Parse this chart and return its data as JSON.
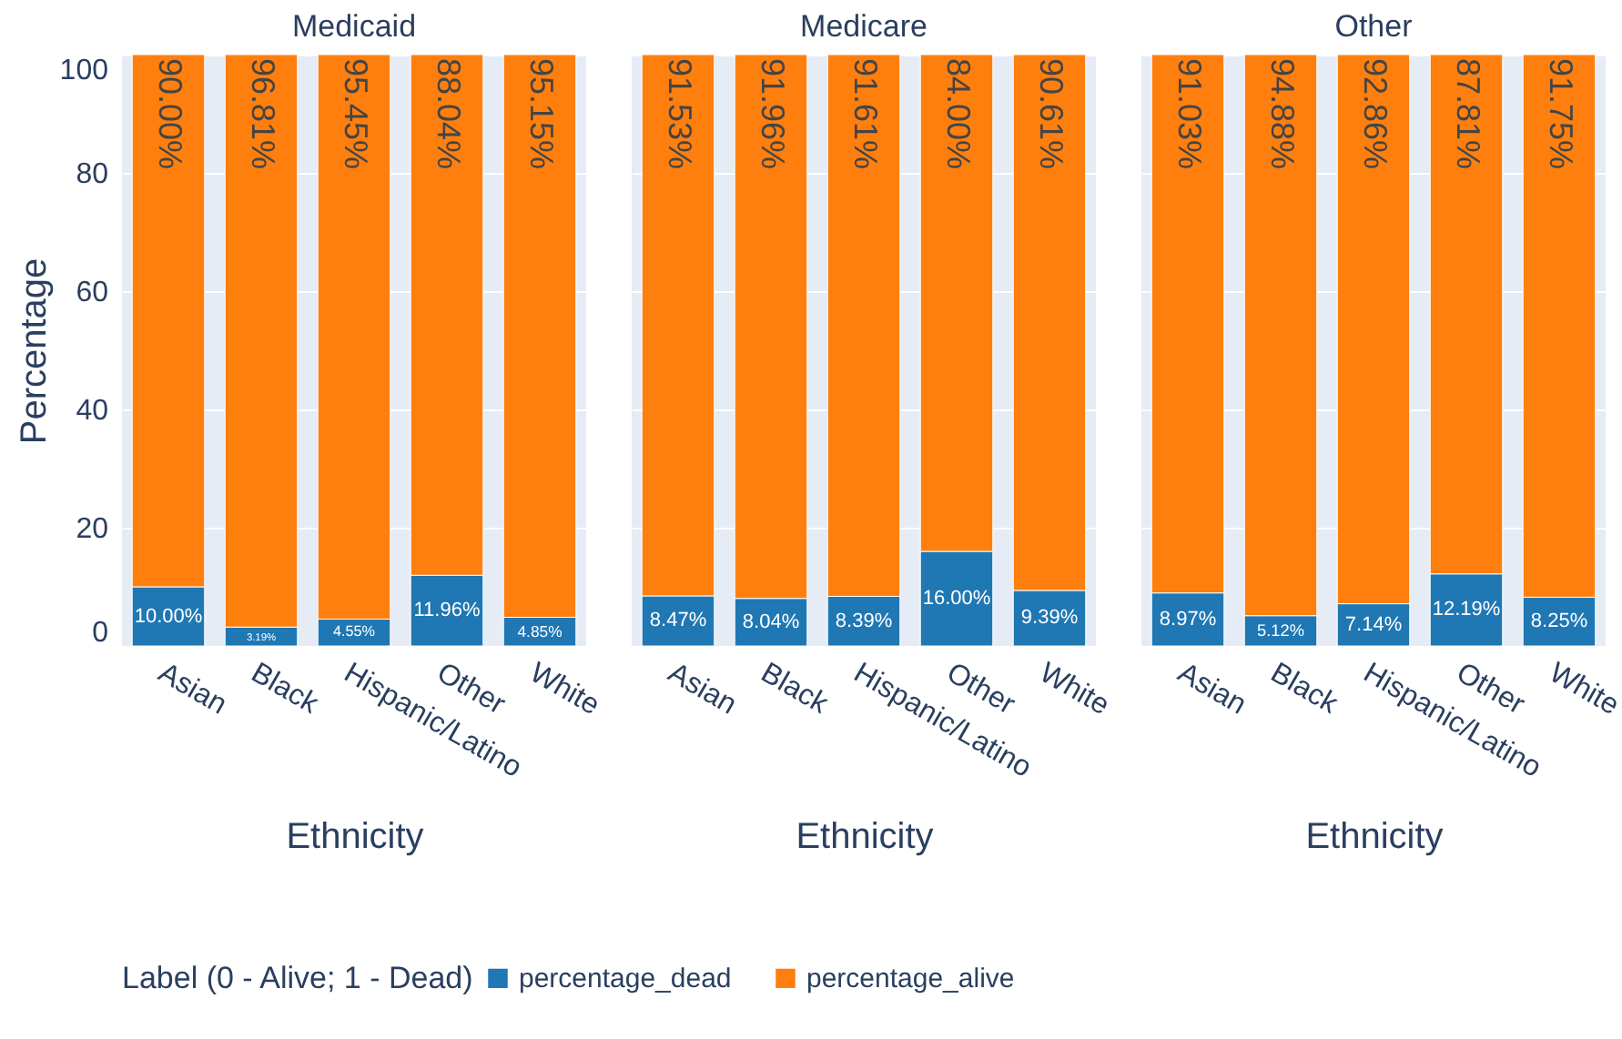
{
  "chart_data": [
    {
      "type": "bar",
      "stacked": true,
      "title": "Medicaid",
      "xlabel": "Ethnicity",
      "ylabel": "Percentage",
      "categories": [
        "Asian",
        "Black",
        "Hispanic/Latino",
        "Other",
        "White"
      ],
      "ylim": [
        0,
        100
      ],
      "yticks": [
        0,
        20,
        40,
        60,
        80,
        100
      ],
      "grid": "y",
      "legend": "bottom",
      "legend_title": "Label (0 - Alive; 1 - Dead)",
      "series": [
        {
          "name": "percentage_dead",
          "color": "#1f77b4",
          "values": [
            10.0,
            3.19,
            4.55,
            11.96,
            4.85
          ],
          "value_labels": [
            "10.00%",
            "3.19%",
            "4.55%",
            "11.96%",
            "4.85%"
          ]
        },
        {
          "name": "percentage_alive",
          "color": "#ff7f0e",
          "values": [
            90.0,
            96.81,
            95.45,
            88.04,
            95.15
          ],
          "value_labels": [
            "90.00%",
            "96.81%",
            "95.45%",
            "88.04%",
            "95.15%"
          ]
        }
      ]
    },
    {
      "type": "bar",
      "stacked": true,
      "title": "Medicare",
      "xlabel": "Ethnicity",
      "categories": [
        "Asian",
        "Black",
        "Hispanic/Latino",
        "Other",
        "White"
      ],
      "ylim": [
        0,
        100
      ],
      "yticks": [
        0,
        20,
        40,
        60,
        80,
        100
      ],
      "grid": "y",
      "tick_labels": "x",
      "series": [
        {
          "name": "percentage_dead",
          "color": "#1f77b4",
          "values": [
            8.47,
            8.04,
            8.39,
            16.0,
            9.39
          ],
          "value_labels": [
            "8.47%",
            "8.04%",
            "8.39%",
            "16.00%",
            "9.39%"
          ]
        },
        {
          "name": "percentage_alive",
          "color": "#ff7f0e",
          "values": [
            91.53,
            91.96,
            91.61,
            84.0,
            90.61
          ],
          "value_labels": [
            "91.53%",
            "91.96%",
            "91.61%",
            "84.00%",
            "90.61%"
          ]
        }
      ]
    },
    {
      "type": "bar",
      "stacked": true,
      "title": "Other",
      "xlabel": "Ethnicity",
      "categories": [
        "Asian",
        "Black",
        "Hispanic/Latino",
        "Other",
        "White"
      ],
      "ylim": [
        0,
        100
      ],
      "yticks": [
        0,
        20,
        40,
        60,
        80,
        100
      ],
      "grid": "y",
      "tick_labels": "x",
      "series": [
        {
          "name": "percentage_dead",
          "color": "#1f77b4",
          "values": [
            8.97,
            5.12,
            7.14,
            12.19,
            8.25
          ],
          "value_labels": [
            "8.97%",
            "5.12%",
            "7.14%",
            "12.19%",
            "8.25%"
          ]
        },
        {
          "name": "percentage_alive",
          "color": "#ff7f0e",
          "values": [
            91.03,
            94.88,
            92.86,
            87.81,
            91.75
          ],
          "value_labels": [
            "91.03%",
            "94.88%",
            "92.86%",
            "87.81%",
            "91.75%"
          ]
        }
      ]
    }
  ]
}
